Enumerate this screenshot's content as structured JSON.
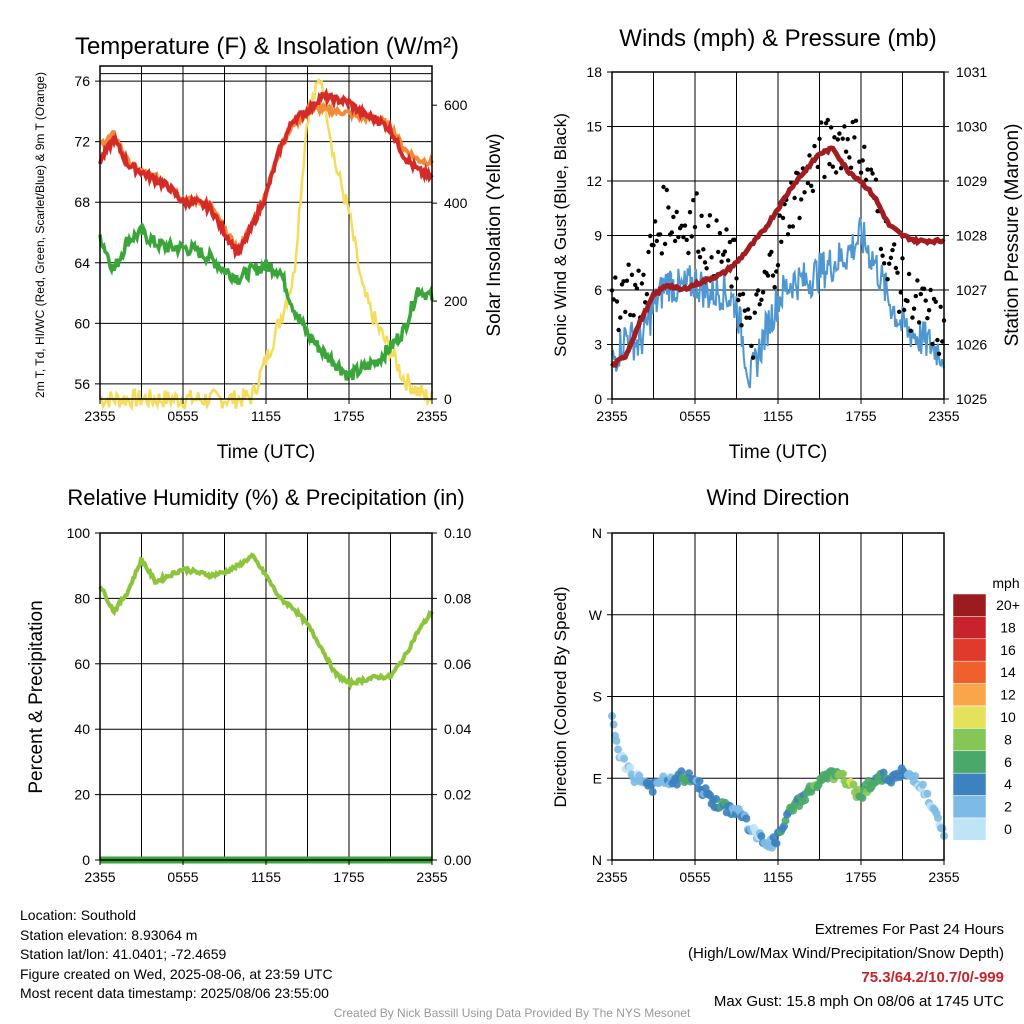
{
  "x_ticks": [
    "2355",
    "0555",
    "1155",
    "1755",
    "2355"
  ],
  "temp_panel": {
    "title": "Temperature (F) & Insolation (W/m²)",
    "xlabel": "Time (UTC)",
    "ylabel": "2m T, Td, HI/WC (Red, Green, Scarlet/Blue) & 9m T (Orange)",
    "y2label": "Solar Insolation (Yellow)",
    "yticks": [
      "56",
      "60",
      "64",
      "68",
      "72",
      "76"
    ],
    "y2ticks": [
      "0",
      "200",
      "400",
      "600"
    ],
    "colors": {
      "temp": "#d42a28",
      "temp9m": "#f28a38",
      "dewpoint": "#3aa63a",
      "solar": "#f5dc5a"
    }
  },
  "wind_panel": {
    "title": "Winds (mph) & Pressure (mb)",
    "xlabel": "Time (UTC)",
    "ylabel": "Sonic Wind & Gust (Blue, Black)",
    "y2label": "Station Pressure (Maroon)",
    "yticks": [
      "0",
      "3",
      "6",
      "9",
      "12",
      "15",
      "18"
    ],
    "y2ticks": [
      "1025",
      "1026",
      "1027",
      "1028",
      "1029",
      "1030",
      "1031"
    ],
    "colors": {
      "wind": "#4f97d1",
      "gust": "#000000",
      "pressure": "#a01e22"
    }
  },
  "rh_panel": {
    "title": "Relative Humidity (%) & Precipitation (in)",
    "ylabel": "Percent & Precipitation",
    "yticks": [
      "0",
      "20",
      "40",
      "60",
      "80",
      "100"
    ],
    "y2ticks": [
      "0.00",
      "0.02",
      "0.04",
      "0.06",
      "0.08",
      "0.10"
    ],
    "colors": {
      "rh": "#8cc43c",
      "precip": "#3aa63a"
    }
  },
  "dir_panel": {
    "title": "Wind Direction",
    "ylabel": "Direction (Colored By Speed)",
    "yticks": [
      "N",
      "E",
      "S",
      "W",
      "N"
    ],
    "legend_title": "mph",
    "legend_labels": [
      "20+",
      "18",
      "16",
      "14",
      "12",
      "10",
      "8",
      "6",
      "4",
      "2",
      "0"
    ],
    "legend_colors": [
      "#9b1b1e",
      "#c8232c",
      "#e03a2c",
      "#f0602c",
      "#f9a64a",
      "#e6e15a",
      "#86c656",
      "#4aa86a",
      "#3c82bf",
      "#7dbbe6",
      "#bfe4f6"
    ]
  },
  "info": {
    "location": "Location: Southold",
    "elevation": "Station elevation: 8.93064 m",
    "latlon": "Station lat/lon: 41.0401; -72.4659",
    "created": "Figure created on Wed, 2025-08-06, at 23:59 UTC",
    "recent": "Most recent data timestamp: 2025/08/06 23:55:00"
  },
  "extremes": {
    "title": "Extremes For Past 24 Hours",
    "subtitle": "(High/Low/Max Wind/Precipitation/Snow Depth)",
    "values": "75.3/64.2/10.7/0/-999",
    "gust": "Max Gust: 15.8 mph On 08/06 at 1745 UTC"
  },
  "credit": "Created By Nick Bassill Using Data Provided By The NYS Mesonet",
  "chart_data": [
    {
      "type": "line",
      "title": "Temperature (F) & Insolation (W/m²)",
      "xlabel": "Time (UTC)",
      "ylim": [
        55,
        77
      ],
      "y2lim": [
        0,
        680
      ],
      "x": [
        0,
        1,
        2,
        3,
        4,
        5,
        6,
        7,
        8,
        9,
        10,
        11,
        12,
        13,
        14,
        15,
        16,
        17,
        18,
        19,
        20,
        21,
        22,
        23,
        24
      ],
      "series": [
        {
          "key": "temp",
          "axis": "left",
          "values": [
            70.7,
            72.2,
            70.5,
            70.0,
            69.5,
            69.0,
            68.0,
            68.0,
            67.6,
            66.0,
            64.6,
            66.4,
            68.5,
            71.5,
            73.5,
            74.0,
            75.0,
            74.8,
            74.6,
            73.8,
            73.5,
            72.8,
            71.0,
            70.1,
            69.6
          ]
        },
        {
          "key": "temp9m",
          "axis": "left",
          "values": [
            71.8,
            72.5,
            70.7,
            70.0,
            69.7,
            69.1,
            68.2,
            68.1,
            67.8,
            66.2,
            64.8,
            66.6,
            68.6,
            71.6,
            73.2,
            74.0,
            74.2,
            74.0,
            73.9,
            73.6,
            73.6,
            73.0,
            71.5,
            70.8,
            70.6
          ]
        },
        {
          "key": "dewpoint",
          "axis": "left",
          "values": [
            65.8,
            63.5,
            65.5,
            66.0,
            65.3,
            65.0,
            65.0,
            64.8,
            64.3,
            63.5,
            63.0,
            63.5,
            63.8,
            63.5,
            61.0,
            59.3,
            58.2,
            57.4,
            56.5,
            57.0,
            57.5,
            58.4,
            59.6,
            62.3,
            61.7
          ]
        },
        {
          "key": "solar",
          "axis": "right",
          "values": [
            0,
            0,
            0,
            0,
            0,
            0,
            0,
            0,
            0,
            0,
            0,
            5,
            80,
            160,
            250,
            580,
            660,
            480,
            380,
            220,
            150,
            100,
            40,
            15,
            0
          ]
        }
      ]
    },
    {
      "type": "line",
      "title": "Winds (mph) & Pressure (mb)",
      "xlabel": "Time (UTC)",
      "ylim": [
        0,
        18
      ],
      "y2lim": [
        1025,
        1031
      ],
      "x": [
        0,
        1,
        2,
        3,
        4,
        5,
        6,
        7,
        8,
        9,
        10,
        11,
        12,
        13,
        14,
        15,
        16,
        17,
        18,
        19,
        20,
        21,
        22,
        23,
        24
      ],
      "series": [
        {
          "key": "wind",
          "axis": "left",
          "values": [
            2.0,
            3.5,
            3.0,
            5.0,
            6.5,
            6.0,
            6.5,
            5.8,
            6.0,
            5.2,
            1.0,
            3.5,
            5.5,
            6.5,
            6.5,
            7.0,
            7.5,
            8.0,
            9.0,
            7.5,
            5.5,
            4.0,
            3.5,
            3.0,
            2.5
          ]
        },
        {
          "key": "gust",
          "axis": "left",
          "values": [
            4.5,
            6.5,
            5.5,
            8.5,
            10.5,
            9.5,
            10.0,
            8.5,
            8.0,
            7.0,
            3.0,
            6.0,
            8.5,
            11.0,
            12.0,
            13.5,
            14.0,
            14.5,
            13.5,
            11.0,
            8.0,
            6.0,
            5.0,
            4.5,
            3.5
          ]
        },
        {
          "key": "pressure",
          "axis": "right",
          "values": [
            1025.6,
            1025.8,
            1026.4,
            1026.9,
            1027.1,
            1027.0,
            1027.1,
            1027.2,
            1027.3,
            1027.5,
            1027.8,
            1028.1,
            1028.5,
            1028.9,
            1029.2,
            1029.5,
            1029.6,
            1029.2,
            1029.0,
            1028.7,
            1028.2,
            1028.0,
            1027.9,
            1027.9,
            1027.9
          ]
        }
      ]
    },
    {
      "type": "line",
      "title": "Relative Humidity (%) & Precipitation (in)",
      "ylim": [
        0,
        100
      ],
      "y2lim": [
        0,
        0.1
      ],
      "x": [
        0,
        1,
        2,
        3,
        4,
        5,
        6,
        7,
        8,
        9,
        10,
        11,
        12,
        13,
        14,
        15,
        16,
        17,
        18,
        19,
        20,
        21,
        22,
        23,
        24
      ],
      "series": [
        {
          "key": "rh",
          "axis": "left",
          "values": [
            84,
            76,
            82,
            92,
            85,
            87,
            89,
            88,
            87,
            88,
            90,
            93,
            87,
            80,
            77,
            72,
            65,
            57,
            54,
            55,
            56,
            56,
            62,
            70,
            76
          ]
        },
        {
          "key": "precip",
          "axis": "right",
          "values": [
            0,
            0,
            0,
            0,
            0,
            0,
            0,
            0,
            0,
            0,
            0,
            0,
            0,
            0,
            0,
            0,
            0,
            0,
            0,
            0,
            0,
            0,
            0,
            0,
            0
          ]
        }
      ]
    },
    {
      "type": "scatter",
      "title": "Wind Direction",
      "ylim": [
        0,
        360
      ],
      "x": [
        0,
        0.5,
        1,
        1.5,
        2,
        2.5,
        3,
        3.5,
        4,
        4.5,
        5,
        5.5,
        6,
        6.5,
        7,
        7.5,
        8,
        8.5,
        9,
        9.5,
        10,
        10.5,
        11,
        11.5,
        12,
        12.5,
        13,
        13.5,
        14,
        14.5,
        15,
        15.5,
        16,
        16.5,
        17,
        17.5,
        18,
        18.5,
        19,
        19.5,
        20,
        20.5,
        21,
        21.5,
        22,
        22.5,
        23,
        23.5,
        24
      ],
      "y": [
        155,
        118,
        102,
        92,
        90,
        84,
        80,
        85,
        88,
        84,
        92,
        90,
        88,
        78,
        70,
        62,
        58,
        56,
        55,
        48,
        34,
        26,
        22,
        17,
        25,
        40,
        57,
        64,
        72,
        80,
        84,
        92,
        94,
        90,
        88,
        76,
        72,
        82,
        88,
        90,
        92,
        90,
        96,
        92,
        90,
        78,
        62,
        45,
        26
      ],
      "speed": [
        3,
        2,
        2,
        3,
        2,
        4,
        5,
        3,
        4,
        5,
        6,
        6,
        5,
        4,
        5,
        6,
        6,
        5,
        3,
        4,
        3,
        2,
        4,
        3,
        5,
        6,
        7,
        6,
        7,
        8,
        7,
        7,
        8,
        9,
        9,
        10,
        7,
        8,
        7,
        6,
        6,
        5,
        5,
        4,
        3,
        2,
        2,
        3,
        2
      ]
    }
  ]
}
